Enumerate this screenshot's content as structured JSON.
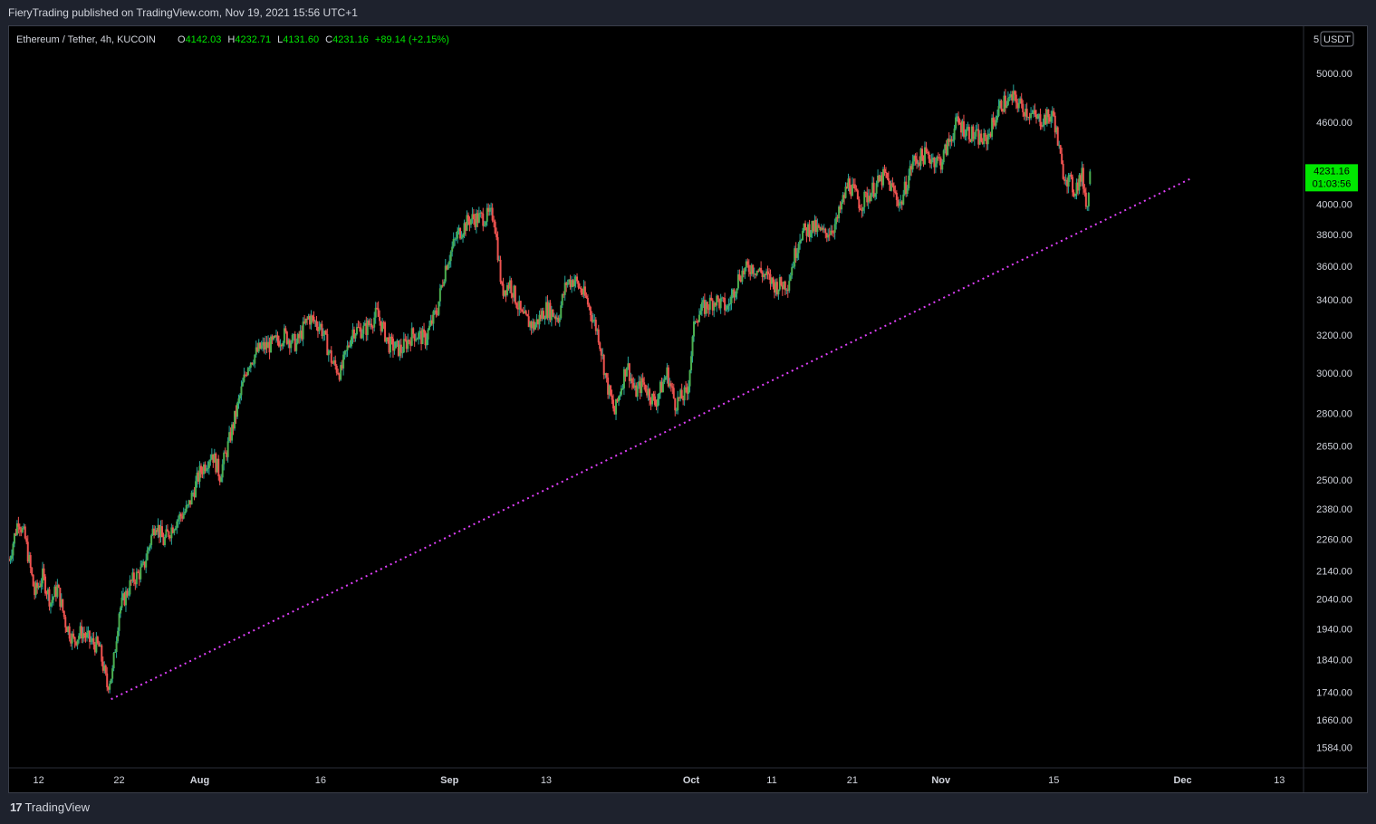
{
  "header": {
    "published_text": "FieryTrading published on TradingView.com, Nov 19, 2021 15:56 UTC+1"
  },
  "legend": {
    "symbol": "Ethereum / Tether, 4h, KUCOIN",
    "o_label": "O",
    "o_value": "4142.03",
    "h_label": "H",
    "h_value": "4232.71",
    "l_label": "L",
    "l_value": "4131.60",
    "c_label": "C",
    "c_value": "4231.16",
    "change": "+89.14 (+2.15%)"
  },
  "axis": {
    "currency_prefix": "5",
    "currency_button": "USDT",
    "price_badge": "4231.16",
    "countdown": "01:03:56"
  },
  "footer": {
    "brand": "TradingView",
    "logo_glyph": "17"
  },
  "colors": {
    "up": "#26a69a",
    "up_body": "#4caf50",
    "down": "#ef5350",
    "trendline": "#e040fb",
    "badge": "#00e600"
  },
  "chart_data": {
    "type": "candlestick",
    "symbol": "ETH/USDT",
    "interval": "4h",
    "y_scale": "log",
    "ylim": [
      1530,
      5420
    ],
    "xlim": [
      "2021-07-08T08:00",
      "2021-12-16T00:00"
    ],
    "y_ticks": [
      "5000.00",
      "4600.00",
      "4000.00",
      "3800.00",
      "3600.00",
      "3400.00",
      "3200.00",
      "3000.00",
      "2800.00",
      "2650.00",
      "2500.00",
      "2380.00",
      "2260.00",
      "2140.00",
      "2040.00",
      "1940.00",
      "1840.00",
      "1740.00",
      "1660.00",
      "1584.00"
    ],
    "x_ticks": [
      {
        "label": "12",
        "date": "2021-07-12"
      },
      {
        "label": "22",
        "date": "2021-07-22"
      },
      {
        "label": "Aug",
        "date": "2021-08-01"
      },
      {
        "label": "16",
        "date": "2021-08-16"
      },
      {
        "label": "Sep",
        "date": "2021-09-01"
      },
      {
        "label": "13",
        "date": "2021-09-13"
      },
      {
        "label": "Oct",
        "date": "2021-10-01"
      },
      {
        "label": "11",
        "date": "2021-10-11"
      },
      {
        "label": "21",
        "date": "2021-10-21"
      },
      {
        "label": "Nov",
        "date": "2021-11-01"
      },
      {
        "label": "15",
        "date": "2021-11-15"
      },
      {
        "label": "Dec",
        "date": "2021-12-01"
      },
      {
        "label": "13",
        "date": "2021-12-13"
      }
    ],
    "price_path": [
      [
        "2021-07-08T08:00",
        2180
      ],
      [
        "2021-07-09T12:00",
        2340
      ],
      [
        "2021-07-10T08:00",
        2260
      ],
      [
        "2021-07-11T12:00",
        2060
      ],
      [
        "2021-07-12T12:00",
        2120
      ],
      [
        "2021-07-13T12:00",
        2030
      ],
      [
        "2021-07-14T08:00",
        2080
      ],
      [
        "2021-07-15T08:00",
        1960
      ],
      [
        "2021-07-16T08:00",
        1900
      ],
      [
        "2021-07-17T08:00",
        1930
      ],
      [
        "2021-07-18T08:00",
        1900
      ],
      [
        "2021-07-19T12:00",
        1880
      ],
      [
        "2021-07-20T12:00",
        1760
      ],
      [
        "2021-07-21T04:00",
        1800
      ],
      [
        "2021-07-22T00:00",
        2000
      ],
      [
        "2021-07-23T12:00",
        2100
      ],
      [
        "2021-07-25T00:00",
        2150
      ],
      [
        "2021-07-26T12:00",
        2330
      ],
      [
        "2021-07-27T12:00",
        2250
      ],
      [
        "2021-07-29T00:00",
        2330
      ],
      [
        "2021-07-30T12:00",
        2380
      ],
      [
        "2021-08-01T00:00",
        2530
      ],
      [
        "2021-08-02T12:00",
        2620
      ],
      [
        "2021-08-03T12:00",
        2520
      ],
      [
        "2021-08-04T12:00",
        2650
      ],
      [
        "2021-08-05T12:00",
        2800
      ],
      [
        "2021-08-07T00:00",
        3050
      ],
      [
        "2021-08-08T12:00",
        3130
      ],
      [
        "2021-08-10T00:00",
        3150
      ],
      [
        "2021-08-11T12:00",
        3200
      ],
      [
        "2021-08-13T00:00",
        3150
      ],
      [
        "2021-08-14T12:00",
        3300
      ],
      [
        "2021-08-16T00:00",
        3250
      ],
      [
        "2021-08-17T12:00",
        3050
      ],
      [
        "2021-08-18T12:00",
        3000
      ],
      [
        "2021-08-20T00:00",
        3230
      ],
      [
        "2021-08-21T12:00",
        3230
      ],
      [
        "2021-08-23T00:00",
        3320
      ],
      [
        "2021-08-24T12:00",
        3150
      ],
      [
        "2021-08-26T00:00",
        3120
      ],
      [
        "2021-08-27T12:00",
        3210
      ],
      [
        "2021-08-29T00:00",
        3180
      ],
      [
        "2021-08-30T12:00",
        3350
      ],
      [
        "2021-08-31T12:00",
        3600
      ],
      [
        "2021-09-02T00:00",
        3800
      ],
      [
        "2021-09-03T12:00",
        3900
      ],
      [
        "2021-09-05T00:00",
        3910
      ],
      [
        "2021-09-06T12:00",
        3930
      ],
      [
        "2021-09-07T12:00",
        3450
      ],
      [
        "2021-09-08T12:00",
        3500
      ],
      [
        "2021-09-10T00:00",
        3300
      ],
      [
        "2021-09-11T12:00",
        3250
      ],
      [
        "2021-09-13T00:00",
        3350
      ],
      [
        "2021-09-14T12:00",
        3300
      ],
      [
        "2021-09-15T12:00",
        3500
      ],
      [
        "2021-09-16T12:00",
        3520
      ],
      [
        "2021-09-18T00:00",
        3400
      ],
      [
        "2021-09-19T12:00",
        3200
      ],
      [
        "2021-09-20T12:00",
        2950
      ],
      [
        "2021-09-21T12:00",
        2800
      ],
      [
        "2021-09-23T00:00",
        3050
      ],
      [
        "2021-09-24T00:00",
        2900
      ],
      [
        "2021-09-25T00:00",
        2950
      ],
      [
        "2021-09-26T12:00",
        2850
      ],
      [
        "2021-09-28T00:00",
        3000
      ],
      [
        "2021-09-29T00:00",
        2850
      ],
      [
        "2021-09-30T12:00",
        2900
      ],
      [
        "2021-10-01T12:00",
        3300
      ],
      [
        "2021-10-02T12:00",
        3350
      ],
      [
        "2021-10-04T00:00",
        3400
      ],
      [
        "2021-10-05T12:00",
        3350
      ],
      [
        "2021-10-07T00:00",
        3550
      ],
      [
        "2021-10-08T12:00",
        3600
      ],
      [
        "2021-10-10T00:00",
        3550
      ],
      [
        "2021-10-11T12:00",
        3480
      ],
      [
        "2021-10-13T00:00",
        3500
      ],
      [
        "2021-10-14T12:00",
        3800
      ],
      [
        "2021-10-16T00:00",
        3850
      ],
      [
        "2021-10-17T12:00",
        3800
      ],
      [
        "2021-10-19T00:00",
        3870
      ],
      [
        "2021-10-20T12:00",
        4150
      ],
      [
        "2021-10-22T00:00",
        4000
      ],
      [
        "2021-10-23T12:00",
        4100
      ],
      [
        "2021-10-25T00:00",
        4200
      ],
      [
        "2021-10-27T00:00",
        4000
      ],
      [
        "2021-10-28T12:00",
        4300
      ],
      [
        "2021-10-30T00:00",
        4350
      ],
      [
        "2021-11-01T00:00",
        4300
      ],
      [
        "2021-11-03T00:00",
        4600
      ],
      [
        "2021-11-05T00:00",
        4500
      ],
      [
        "2021-11-06T12:00",
        4450
      ],
      [
        "2021-11-08T12:00",
        4750
      ],
      [
        "2021-11-10T00:00",
        4790
      ],
      [
        "2021-11-11T12:00",
        4700
      ],
      [
        "2021-11-13T00:00",
        4620
      ],
      [
        "2021-11-15T00:00",
        4650
      ],
      [
        "2021-11-16T00:00",
        4250
      ],
      [
        "2021-11-17T12:00",
        4100
      ],
      [
        "2021-11-18T12:00",
        4200
      ],
      [
        "2021-11-19T04:00",
        3980
      ],
      [
        "2021-11-19T12:00",
        4231.16
      ]
    ],
    "trendline": {
      "style": "dotted",
      "points": [
        [
          "2021-07-21T00:00",
          1720
        ],
        [
          "2021-12-02T00:00",
          4180
        ]
      ]
    }
  }
}
